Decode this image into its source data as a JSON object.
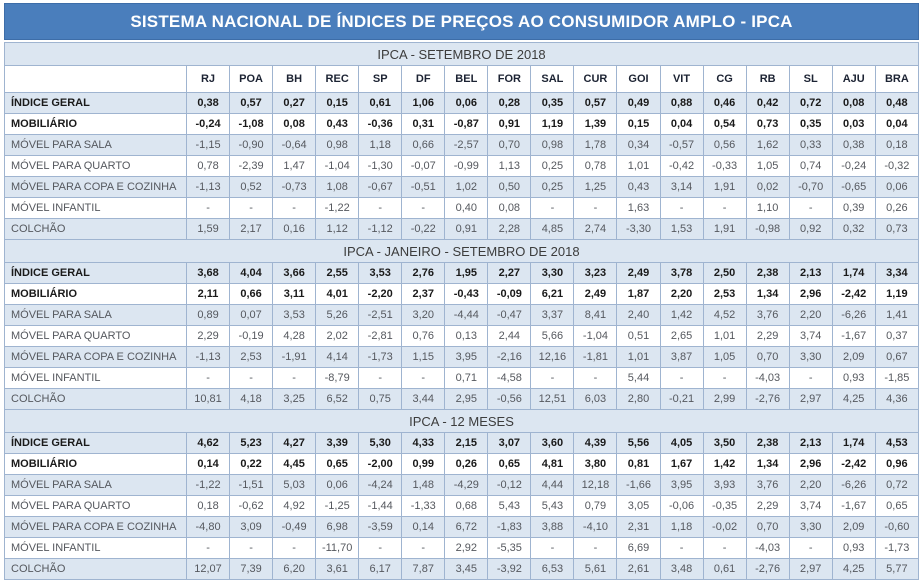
{
  "title": "SISTEMA NACIONAL DE ÍNDICES DE PREÇOS AO CONSUMIDOR AMPLO - IPCA",
  "colors": {
    "title_bar": "#4a7ebc",
    "section_band": "#dce6f1",
    "row_stripe": "#dce6f1",
    "gridline": "#9fb4d0"
  },
  "chart_data": {
    "type": "table",
    "corner_label": "",
    "columns": [
      "RJ",
      "POA",
      "BH",
      "REC",
      "SP",
      "DF",
      "BEL",
      "FOR",
      "SAL",
      "CUR",
      "GOI",
      "VIT",
      "CG",
      "RB",
      "SL",
      "AJU",
      "BRA"
    ],
    "sections": [
      {
        "title": "IPCA - SETEMBRO DE 2018",
        "rows": [
          {
            "label": "ÍNDICE GERAL",
            "bold": true,
            "values": [
              "0,38",
              "0,57",
              "0,27",
              "0,15",
              "0,61",
              "1,06",
              "0,06",
              "0,28",
              "0,35",
              "0,57",
              "0,49",
              "0,88",
              "0,46",
              "0,42",
              "0,72",
              "0,08",
              "0,48"
            ]
          },
          {
            "label": "MOBILIÁRIO",
            "bold": true,
            "values": [
              "-0,24",
              "-1,08",
              "0,08",
              "0,43",
              "-0,36",
              "0,31",
              "-0,87",
              "0,91",
              "1,19",
              "1,39",
              "0,15",
              "0,04",
              "0,54",
              "0,73",
              "0,35",
              "0,03",
              "0,04"
            ]
          },
          {
            "label": "MÓVEL PARA SALA",
            "bold": false,
            "values": [
              "-1,15",
              "-0,90",
              "-0,64",
              "0,98",
              "1,18",
              "0,66",
              "-2,57",
              "0,70",
              "0,98",
              "1,78",
              "0,34",
              "-0,57",
              "0,56",
              "1,62",
              "0,33",
              "0,38",
              "0,18"
            ]
          },
          {
            "label": "MÓVEL PARA QUARTO",
            "bold": false,
            "values": [
              "0,78",
              "-2,39",
              "1,47",
              "-1,04",
              "-1,30",
              "-0,07",
              "-0,99",
              "1,13",
              "0,25",
              "0,78",
              "1,01",
              "-0,42",
              "-0,33",
              "1,05",
              "0,74",
              "-0,24",
              "-0,32"
            ]
          },
          {
            "label": "MÓVEL PARA COPA E COZINHA",
            "bold": false,
            "values": [
              "-1,13",
              "0,52",
              "-0,73",
              "1,08",
              "-0,67",
              "-0,51",
              "1,02",
              "0,50",
              "0,25",
              "1,25",
              "0,43",
              "3,14",
              "1,91",
              "0,02",
              "-0,70",
              "-0,65",
              "0,06"
            ]
          },
          {
            "label": "MÓVEL INFANTIL",
            "bold": false,
            "values": [
              "-",
              "-",
              "-",
              "-1,22",
              "-",
              "-",
              "0,40",
              "0,08",
              "-",
              "-",
              "1,63",
              "-",
              "-",
              "1,10",
              "-",
              "0,39",
              "0,26"
            ]
          },
          {
            "label": "COLCHÃO",
            "bold": false,
            "values": [
              "1,59",
              "2,17",
              "0,16",
              "1,12",
              "-1,12",
              "-0,22",
              "0,91",
              "2,28",
              "4,85",
              "2,74",
              "-3,30",
              "1,53",
              "1,91",
              "-0,98",
              "0,92",
              "0,32",
              "0,73"
            ]
          }
        ]
      },
      {
        "title": "IPCA - JANEIRO - SETEMBRO DE 2018",
        "rows": [
          {
            "label": "ÍNDICE GERAL",
            "bold": true,
            "values": [
              "3,68",
              "4,04",
              "3,66",
              "2,55",
              "3,53",
              "2,76",
              "1,95",
              "2,27",
              "3,30",
              "3,23",
              "2,49",
              "3,78",
              "2,50",
              "2,38",
              "2,13",
              "1,74",
              "3,34"
            ]
          },
          {
            "label": "MOBILIÁRIO",
            "bold": true,
            "values": [
              "2,11",
              "0,66",
              "3,11",
              "4,01",
              "-2,20",
              "2,37",
              "-0,43",
              "-0,09",
              "6,21",
              "2,49",
              "1,87",
              "2,20",
              "2,53",
              "1,34",
              "2,96",
              "-2,42",
              "1,19"
            ]
          },
          {
            "label": "MÓVEL PARA SALA",
            "bold": false,
            "values": [
              "0,89",
              "0,07",
              "3,53",
              "5,26",
              "-2,51",
              "3,20",
              "-4,44",
              "-0,47",
              "3,37",
              "8,41",
              "2,40",
              "1,42",
              "4,52",
              "3,76",
              "2,20",
              "-6,26",
              "1,41"
            ]
          },
          {
            "label": "MÓVEL PARA QUARTO",
            "bold": false,
            "values": [
              "2,29",
              "-0,19",
              "4,28",
              "2,02",
              "-2,81",
              "0,76",
              "0,13",
              "2,44",
              "5,66",
              "-1,04",
              "0,51",
              "2,65",
              "1,01",
              "2,29",
              "3,74",
              "-1,67",
              "0,37"
            ]
          },
          {
            "label": "MÓVEL PARA COPA E COZINHA",
            "bold": false,
            "values": [
              "-1,13",
              "2,53",
              "-1,91",
              "4,14",
              "-1,73",
              "1,15",
              "3,95",
              "-2,16",
              "12,16",
              "-1,81",
              "1,01",
              "3,87",
              "1,05",
              "0,70",
              "3,30",
              "2,09",
              "0,67"
            ]
          },
          {
            "label": "MÓVEL INFANTIL",
            "bold": false,
            "values": [
              "-",
              "-",
              "-",
              "-8,79",
              "-",
              "-",
              "0,71",
              "-4,58",
              "-",
              "-",
              "5,44",
              "-",
              "-",
              "-4,03",
              "-",
              "0,93",
              "-1,85"
            ]
          },
          {
            "label": "COLCHÃO",
            "bold": false,
            "values": [
              "10,81",
              "4,18",
              "3,25",
              "6,52",
              "0,75",
              "3,44",
              "2,95",
              "-0,56",
              "12,51",
              "6,03",
              "2,80",
              "-0,21",
              "2,99",
              "-2,76",
              "2,97",
              "4,25",
              "4,36"
            ]
          }
        ]
      },
      {
        "title": "IPCA - 12 MESES",
        "rows": [
          {
            "label": "ÍNDICE GERAL",
            "bold": true,
            "values": [
              "4,62",
              "5,23",
              "4,27",
              "3,39",
              "5,30",
              "4,33",
              "2,15",
              "3,07",
              "3,60",
              "4,39",
              "5,56",
              "4,05",
              "3,50",
              "2,38",
              "2,13",
              "1,74",
              "4,53"
            ]
          },
          {
            "label": "MOBILIÁRIO",
            "bold": true,
            "values": [
              "0,14",
              "0,22",
              "4,45",
              "0,65",
              "-2,00",
              "0,99",
              "0,26",
              "0,65",
              "4,81",
              "3,80",
              "0,81",
              "1,67",
              "1,42",
              "1,34",
              "2,96",
              "-2,42",
              "0,96"
            ]
          },
          {
            "label": "MÓVEL PARA SALA",
            "bold": false,
            "values": [
              "-1,22",
              "-1,51",
              "5,03",
              "0,06",
              "-4,24",
              "1,48",
              "-4,29",
              "-0,12",
              "4,44",
              "12,18",
              "-1,66",
              "3,95",
              "3,93",
              "3,76",
              "2,20",
              "-6,26",
              "0,72"
            ]
          },
          {
            "label": "MÓVEL PARA QUARTO",
            "bold": false,
            "values": [
              "0,18",
              "-0,62",
              "4,92",
              "-1,25",
              "-1,44",
              "-1,33",
              "0,68",
              "5,43",
              "5,43",
              "0,79",
              "3,05",
              "-0,06",
              "-0,35",
              "2,29",
              "3,74",
              "-1,67",
              "0,65"
            ]
          },
          {
            "label": "MÓVEL PARA COPA E COZINHA",
            "bold": false,
            "values": [
              "-4,80",
              "3,09",
              "-0,49",
              "6,98",
              "-3,59",
              "0,14",
              "6,72",
              "-1,83",
              "3,88",
              "-4,10",
              "2,31",
              "1,18",
              "-0,02",
              "0,70",
              "3,30",
              "2,09",
              "-0,60"
            ]
          },
          {
            "label": "MÓVEL INFANTIL",
            "bold": false,
            "values": [
              "-",
              "-",
              "-",
              "-11,70",
              "-",
              "-",
              "2,92",
              "-5,35",
              "-",
              "-",
              "6,69",
              "-",
              "-",
              "-4,03",
              "-",
              "0,93",
              "-1,73"
            ]
          },
          {
            "label": "COLCHÃO",
            "bold": false,
            "values": [
              "12,07",
              "7,39",
              "6,20",
              "3,61",
              "6,17",
              "7,87",
              "3,45",
              "-3,92",
              "6,53",
              "5,61",
              "2,61",
              "3,48",
              "0,61",
              "-2,76",
              "2,97",
              "4,25",
              "5,77"
            ]
          }
        ]
      }
    ]
  }
}
